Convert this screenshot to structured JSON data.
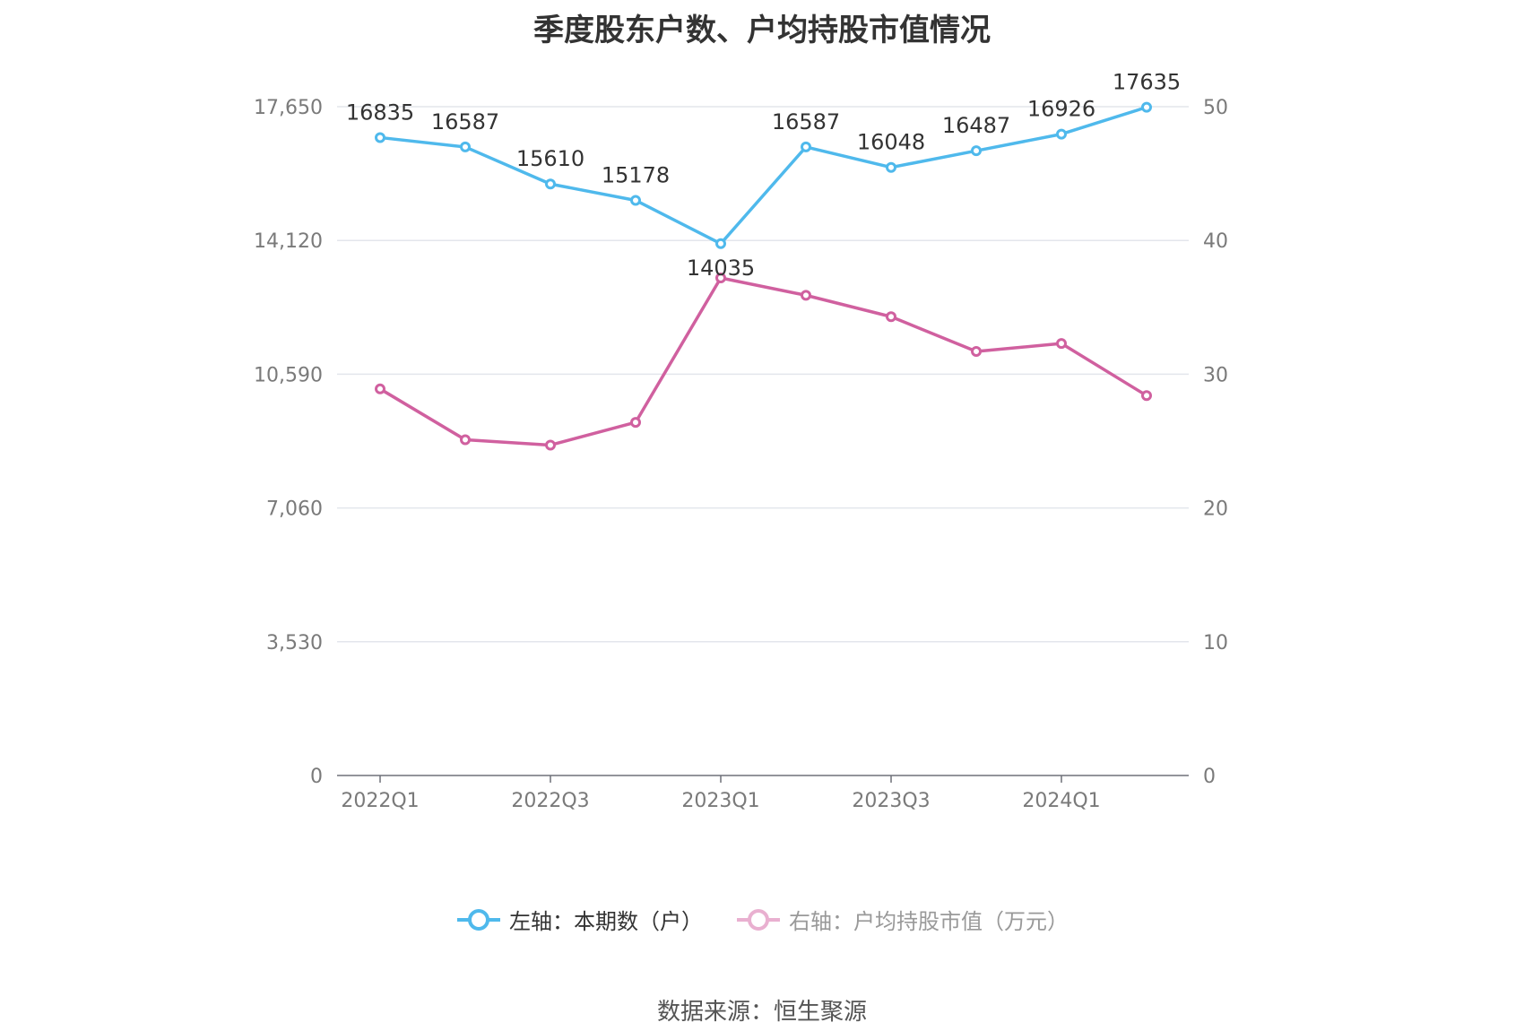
{
  "chart_data": {
    "type": "line",
    "title": "季度股东户数、户均持股市值情况",
    "categories": [
      "2022Q1",
      "2022Q2",
      "2022Q3",
      "2022Q4",
      "2023Q1",
      "2023Q2",
      "2023Q3",
      "2023Q4",
      "2024Q1",
      "2024Q2"
    ],
    "x_tick_labels": [
      "2022Q1",
      "2022Q3",
      "2023Q1",
      "2023Q3",
      "2024Q1"
    ],
    "left_axis": {
      "ticks": [
        "0",
        "3,530",
        "7,060",
        "10,590",
        "14,120",
        "17,650"
      ],
      "ylim": [
        0,
        17650
      ]
    },
    "right_axis": {
      "ticks": [
        "0",
        "10",
        "20",
        "30",
        "40",
        "50"
      ],
      "ylim": [
        0,
        50
      ]
    },
    "series": [
      {
        "name": "左轴：本期数（户）",
        "axis": "left",
        "color": "#4fb9ec",
        "values": [
          16835,
          16587,
          15610,
          15178,
          14035,
          16587,
          16048,
          16487,
          16926,
          17635
        ],
        "labels": [
          "16835",
          "16587",
          "15610",
          "15178",
          "14035",
          "16587",
          "16048",
          "16487",
          "16926",
          "17635"
        ]
      },
      {
        "name": "右轴：户均持股市值（万元）",
        "axis": "right",
        "color": "#d0609f",
        "values": [
          28.9,
          25.1,
          24.7,
          26.4,
          37.2,
          35.9,
          34.3,
          31.7,
          32.3,
          28.4
        ]
      }
    ],
    "grid": true,
    "legend_position": "bottom"
  },
  "legend": {
    "item1": "左轴：本期数（户）",
    "item2": "右轴：户均持股市值（万元）",
    "item2_state": "dimmed"
  },
  "source": "数据来源：恒生聚源",
  "colors": {
    "blue": "#4fb9ec",
    "pink": "#d0609f",
    "pink_dim": "#e9b0d0",
    "grid": "#e3e6ec"
  }
}
